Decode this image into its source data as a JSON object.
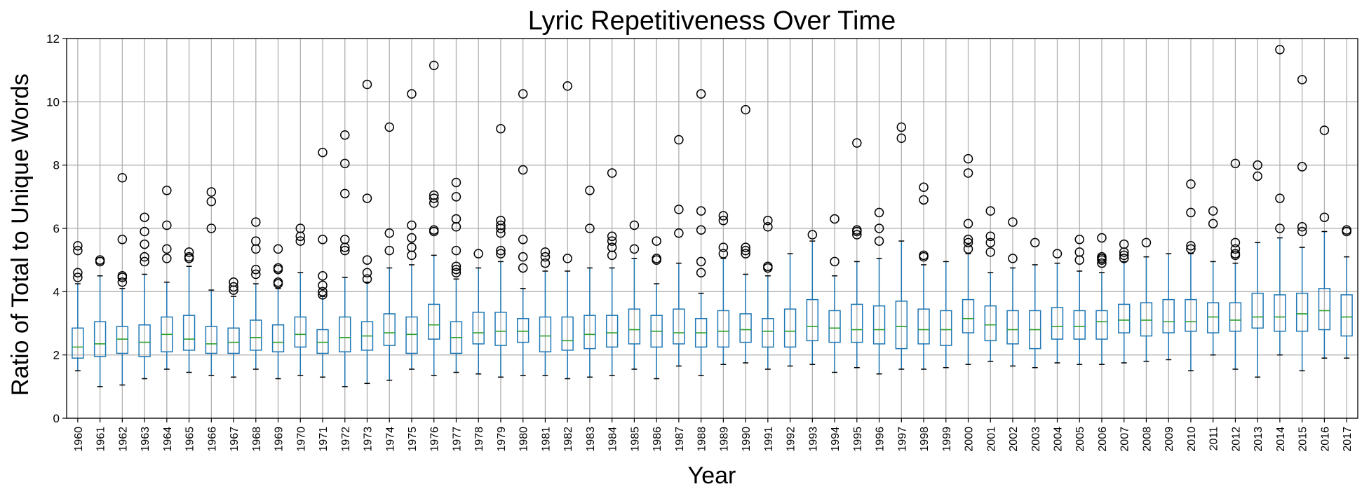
{
  "chart_data": {
    "type": "box",
    "title": "Lyric Repetitiveness Over Time",
    "xlabel": "Year",
    "ylabel": "Ratio of Total to Unique Words",
    "ylim": [
      0,
      12
    ],
    "yticks": [
      0,
      2,
      4,
      6,
      8,
      10,
      12
    ],
    "grid": true,
    "colors": {
      "box": "#1f77b4",
      "median": "#2ca02c",
      "outlier": "#000000",
      "grid": "#b0b0b0"
    },
    "boxes": [
      {
        "year": "1960",
        "whislo": 1.5,
        "q1": 1.9,
        "med": 2.25,
        "q3": 2.85,
        "whishi": 4.25,
        "fliers": [
          4.45,
          4.6,
          5.3,
          5.45
        ]
      },
      {
        "year": "1961",
        "whislo": 1.0,
        "q1": 1.95,
        "med": 2.35,
        "q3": 3.05,
        "whishi": 4.5,
        "fliers": [
          4.95,
          5.0
        ]
      },
      {
        "year": "1962",
        "whislo": 1.05,
        "q1": 2.05,
        "med": 2.5,
        "q3": 2.9,
        "whishi": 4.1,
        "fliers": [
          4.3,
          4.45,
          4.5,
          5.65,
          7.6
        ]
      },
      {
        "year": "1963",
        "whislo": 1.25,
        "q1": 1.95,
        "med": 2.4,
        "q3": 2.95,
        "whishi": 4.55,
        "fliers": [
          4.95,
          5.1,
          5.5,
          5.9,
          6.35
        ]
      },
      {
        "year": "1964",
        "whislo": 1.55,
        "q1": 2.1,
        "med": 2.65,
        "q3": 3.2,
        "whishi": 4.3,
        "fliers": [
          5.05,
          5.35,
          6.1,
          7.2
        ]
      },
      {
        "year": "1965",
        "whislo": 1.45,
        "q1": 2.15,
        "med": 2.5,
        "q3": 3.25,
        "whishi": 4.8,
        "fliers": [
          5.05,
          5.1,
          5.25
        ]
      },
      {
        "year": "1966",
        "whislo": 1.35,
        "q1": 2.05,
        "med": 2.35,
        "q3": 2.9,
        "whishi": 4.05,
        "fliers": [
          6.0,
          6.85,
          7.15
        ]
      },
      {
        "year": "1967",
        "whislo": 1.3,
        "q1": 2.05,
        "med": 2.4,
        "q3": 2.85,
        "whishi": 3.85,
        "fliers": [
          4.05,
          4.15,
          4.3
        ]
      },
      {
        "year": "1968",
        "whislo": 1.55,
        "q1": 2.15,
        "med": 2.55,
        "q3": 3.1,
        "whishi": 4.25,
        "fliers": [
          4.55,
          4.7,
          5.35,
          5.6,
          6.2
        ]
      },
      {
        "year": "1969",
        "whislo": 1.25,
        "q1": 2.1,
        "med": 2.4,
        "q3": 2.95,
        "whishi": 4.1,
        "fliers": [
          4.25,
          4.3,
          4.7,
          4.75,
          5.35
        ]
      },
      {
        "year": "1970",
        "whislo": 1.35,
        "q1": 2.25,
        "med": 2.65,
        "q3": 3.2,
        "whishi": 4.6,
        "fliers": [
          5.6,
          5.75,
          6.0
        ]
      },
      {
        "year": "1971",
        "whislo": 1.3,
        "q1": 2.05,
        "med": 2.4,
        "q3": 2.8,
        "whishi": 3.85,
        "fliers": [
          3.9,
          4.0,
          4.2,
          4.5,
          5.65,
          8.4
        ]
      },
      {
        "year": "1972",
        "whislo": 1.0,
        "q1": 2.1,
        "med": 2.55,
        "q3": 3.2,
        "whishi": 4.45,
        "fliers": [
          5.3,
          5.4,
          5.65,
          7.1,
          8.05,
          8.95
        ]
      },
      {
        "year": "1973",
        "whislo": 1.1,
        "q1": 2.15,
        "med": 2.6,
        "q3": 3.05,
        "whishi": 4.3,
        "fliers": [
          4.4,
          4.6,
          5.0,
          6.95,
          10.55
        ]
      },
      {
        "year": "1974",
        "whislo": 1.2,
        "q1": 2.3,
        "med": 2.7,
        "q3": 3.3,
        "whishi": 4.75,
        "fliers": [
          5.3,
          5.85,
          9.2
        ]
      },
      {
        "year": "1975",
        "whislo": 1.55,
        "q1": 2.05,
        "med": 2.65,
        "q3": 3.2,
        "whishi": 4.85,
        "fliers": [
          5.15,
          5.4,
          5.7,
          6.1,
          10.25
        ]
      },
      {
        "year": "1976",
        "whislo": 1.35,
        "q1": 2.5,
        "med": 2.95,
        "q3": 3.6,
        "whishi": 5.15,
        "fliers": [
          5.9,
          5.95,
          6.8,
          6.95,
          7.05,
          11.15
        ]
      },
      {
        "year": "1977",
        "whislo": 1.45,
        "q1": 2.05,
        "med": 2.55,
        "q3": 3.05,
        "whishi": 4.4,
        "fliers": [
          4.6,
          4.7,
          4.8,
          5.3,
          6.05,
          6.3,
          7.0,
          7.45
        ]
      },
      {
        "year": "1978",
        "whislo": 1.4,
        "q1": 2.35,
        "med": 2.7,
        "q3": 3.35,
        "whishi": 4.75,
        "fliers": [
          5.2
        ]
      },
      {
        "year": "1979",
        "whislo": 1.3,
        "q1": 2.3,
        "med": 2.75,
        "q3": 3.35,
        "whishi": 4.95,
        "fliers": [
          5.2,
          5.3,
          5.85,
          6.0,
          6.1,
          6.25,
          9.15
        ]
      },
      {
        "year": "1980",
        "whislo": 1.35,
        "q1": 2.4,
        "med": 2.75,
        "q3": 3.15,
        "whishi": 4.1,
        "fliers": [
          4.75,
          5.1,
          5.65,
          7.85,
          10.25
        ]
      },
      {
        "year": "1981",
        "whislo": 1.35,
        "q1": 2.1,
        "med": 2.6,
        "q3": 3.2,
        "whishi": 4.65,
        "fliers": [
          4.9,
          5.1,
          5.25
        ]
      },
      {
        "year": "1982",
        "whislo": 1.25,
        "q1": 2.15,
        "med": 2.45,
        "q3": 3.2,
        "whishi": 4.65,
        "fliers": [
          5.05,
          10.5
        ]
      },
      {
        "year": "1983",
        "whislo": 1.3,
        "q1": 2.2,
        "med": 2.65,
        "q3": 3.25,
        "whishi": 4.75,
        "fliers": [
          6.0,
          7.2
        ]
      },
      {
        "year": "1984",
        "whislo": 1.35,
        "q1": 2.25,
        "med": 2.7,
        "q3": 3.25,
        "whishi": 4.75,
        "fliers": [
          5.15,
          5.4,
          5.6,
          5.75,
          7.75
        ]
      },
      {
        "year": "1985",
        "whislo": 1.55,
        "q1": 2.35,
        "med": 2.8,
        "q3": 3.45,
        "whishi": 5.05,
        "fliers": [
          5.35,
          6.1
        ]
      },
      {
        "year": "1986",
        "whislo": 1.25,
        "q1": 2.25,
        "med": 2.75,
        "q3": 3.25,
        "whishi": 4.25,
        "fliers": [
          5.0,
          5.05,
          5.6
        ]
      },
      {
        "year": "1987",
        "whislo": 1.65,
        "q1": 2.35,
        "med": 2.7,
        "q3": 3.45,
        "whishi": 4.9,
        "fliers": [
          5.85,
          6.6,
          8.8
        ]
      },
      {
        "year": "1988",
        "whislo": 1.35,
        "q1": 2.25,
        "med": 2.7,
        "q3": 3.15,
        "whishi": 3.95,
        "fliers": [
          4.6,
          4.95,
          5.95,
          6.55,
          10.25
        ]
      },
      {
        "year": "1989",
        "whislo": 1.7,
        "q1": 2.25,
        "med": 2.75,
        "q3": 3.4,
        "whishi": 5.05,
        "fliers": [
          5.2,
          5.4,
          6.25,
          6.4
        ]
      },
      {
        "year": "1990",
        "whislo": 1.75,
        "q1": 2.4,
        "med": 2.8,
        "q3": 3.3,
        "whishi": 4.55,
        "fliers": [
          5.2,
          5.3,
          5.4,
          9.75
        ]
      },
      {
        "year": "1991",
        "whislo": 1.55,
        "q1": 2.25,
        "med": 2.75,
        "q3": 3.15,
        "whishi": 4.5,
        "fliers": [
          4.75,
          4.8,
          6.05,
          6.25
        ]
      },
      {
        "year": "1992",
        "whislo": 1.65,
        "q1": 2.25,
        "med": 2.75,
        "q3": 3.45,
        "whishi": 5.2,
        "fliers": []
      },
      {
        "year": "1993",
        "whislo": 1.7,
        "q1": 2.45,
        "med": 2.9,
        "q3": 3.75,
        "whishi": 5.6,
        "fliers": [
          5.8
        ]
      },
      {
        "year": "1994",
        "whislo": 1.45,
        "q1": 2.4,
        "med": 2.85,
        "q3": 3.4,
        "whishi": 4.5,
        "fliers": [
          4.95,
          6.3
        ]
      },
      {
        "year": "1995",
        "whislo": 1.6,
        "q1": 2.4,
        "med": 2.8,
        "q3": 3.6,
        "whishi": 4.95,
        "fliers": [
          5.8,
          5.9,
          5.95,
          8.7
        ]
      },
      {
        "year": "1996",
        "whislo": 1.4,
        "q1": 2.35,
        "med": 2.8,
        "q3": 3.55,
        "whishi": 5.05,
        "fliers": [
          5.6,
          6.0,
          6.5
        ]
      },
      {
        "year": "1997",
        "whislo": 1.55,
        "q1": 2.2,
        "med": 2.9,
        "q3": 3.7,
        "whishi": 5.6,
        "fliers": [
          8.85,
          9.2
        ]
      },
      {
        "year": "1998",
        "whislo": 1.55,
        "q1": 2.35,
        "med": 2.8,
        "q3": 3.45,
        "whishi": 4.85,
        "fliers": [
          5.1,
          5.15,
          6.9,
          7.3
        ]
      },
      {
        "year": "1999",
        "whislo": 1.6,
        "q1": 2.3,
        "med": 2.8,
        "q3": 3.4,
        "whishi": 4.95,
        "fliers": []
      },
      {
        "year": "2000",
        "whislo": 1.7,
        "q1": 2.7,
        "med": 3.15,
        "q3": 3.75,
        "whishi": 5.2,
        "fliers": [
          5.35,
          5.55,
          5.65,
          6.15,
          7.75,
          8.2
        ]
      },
      {
        "year": "2001",
        "whislo": 1.8,
        "q1": 2.45,
        "med": 2.95,
        "q3": 3.55,
        "whishi": 4.6,
        "fliers": [
          5.25,
          5.55,
          5.75,
          6.55
        ]
      },
      {
        "year": "2002",
        "whislo": 1.65,
        "q1": 2.35,
        "med": 2.8,
        "q3": 3.4,
        "whishi": 4.75,
        "fliers": [
          5.05,
          6.2
        ]
      },
      {
        "year": "2003",
        "whislo": 1.6,
        "q1": 2.2,
        "med": 2.8,
        "q3": 3.4,
        "whishi": 4.85,
        "fliers": [
          5.55
        ]
      },
      {
        "year": "2004",
        "whislo": 1.75,
        "q1": 2.5,
        "med": 2.9,
        "q3": 3.5,
        "whishi": 4.9,
        "fliers": [
          5.2
        ]
      },
      {
        "year": "2005",
        "whislo": 1.7,
        "q1": 2.5,
        "med": 2.9,
        "q3": 3.4,
        "whishi": 4.65,
        "fliers": [
          5.0,
          5.25,
          5.65
        ]
      },
      {
        "year": "2006",
        "whislo": 1.7,
        "q1": 2.5,
        "med": 3.05,
        "q3": 3.4,
        "whishi": 4.6,
        "fliers": [
          4.9,
          5.0,
          5.05,
          5.1,
          5.7
        ]
      },
      {
        "year": "2007",
        "whislo": 1.75,
        "q1": 2.7,
        "med": 3.1,
        "q3": 3.6,
        "whishi": 4.95,
        "fliers": [
          5.05,
          5.15,
          5.25,
          5.5
        ]
      },
      {
        "year": "2008",
        "whislo": 1.8,
        "q1": 2.6,
        "med": 3.1,
        "q3": 3.65,
        "whishi": 5.1,
        "fliers": [
          5.55
        ]
      },
      {
        "year": "2009",
        "whislo": 1.85,
        "q1": 2.7,
        "med": 3.05,
        "q3": 3.75,
        "whishi": 5.2,
        "fliers": []
      },
      {
        "year": "2010",
        "whislo": 1.5,
        "q1": 2.75,
        "med": 3.05,
        "q3": 3.75,
        "whishi": 5.2,
        "fliers": [
          5.35,
          5.45,
          6.5,
          7.4
        ]
      },
      {
        "year": "2011",
        "whislo": 2.0,
        "q1": 2.7,
        "med": 3.2,
        "q3": 3.65,
        "whishi": 4.95,
        "fliers": [
          6.15,
          6.55
        ]
      },
      {
        "year": "2012",
        "whislo": 1.55,
        "q1": 2.75,
        "med": 3.1,
        "q3": 3.65,
        "whishi": 4.9,
        "fliers": [
          5.15,
          5.2,
          5.35,
          5.55,
          8.05
        ]
      },
      {
        "year": "2013",
        "whislo": 1.3,
        "q1": 2.85,
        "med": 3.2,
        "q3": 3.95,
        "whishi": 5.55,
        "fliers": [
          7.65,
          8.0
        ]
      },
      {
        "year": "2014",
        "whislo": 2.0,
        "q1": 2.75,
        "med": 3.2,
        "q3": 3.9,
        "whishi": 5.7,
        "fliers": [
          6.0,
          6.95,
          11.65
        ]
      },
      {
        "year": "2015",
        "whislo": 1.5,
        "q1": 2.75,
        "med": 3.3,
        "q3": 3.95,
        "whishi": 5.4,
        "fliers": [
          5.9,
          6.05,
          7.95,
          10.7
        ]
      },
      {
        "year": "2016",
        "whislo": 1.9,
        "q1": 2.8,
        "med": 3.4,
        "q3": 4.1,
        "whishi": 5.9,
        "fliers": [
          6.35,
          9.1
        ]
      },
      {
        "year": "2017",
        "whislo": 1.9,
        "q1": 2.6,
        "med": 3.2,
        "q3": 3.9,
        "whishi": 5.1,
        "fliers": [
          5.9,
          5.95
        ]
      }
    ]
  }
}
